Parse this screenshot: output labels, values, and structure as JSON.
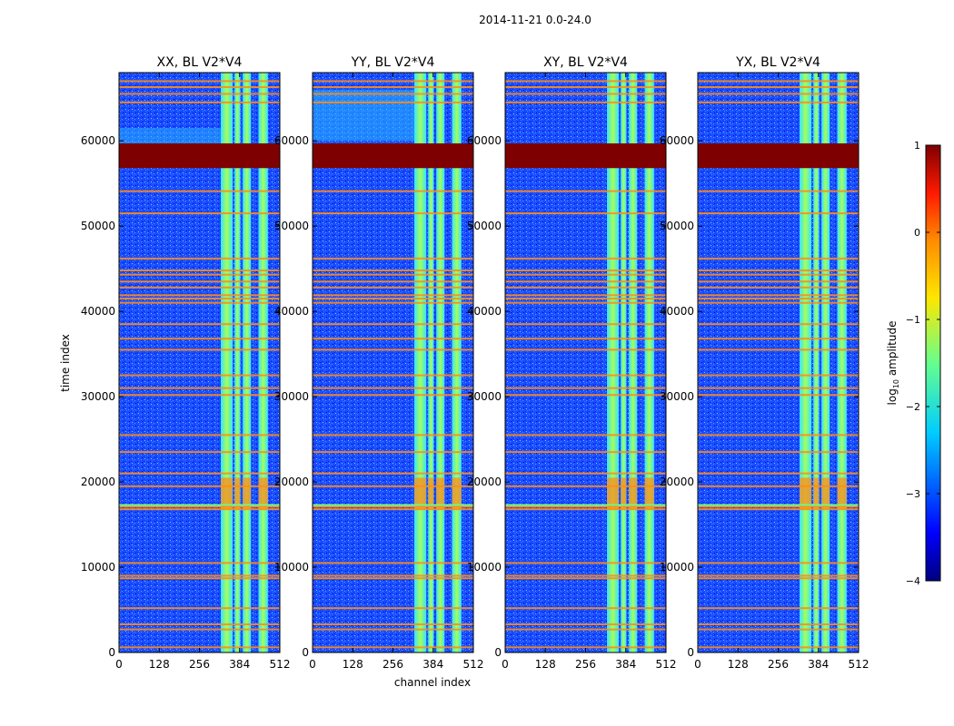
{
  "figure": {
    "suptitle": "2014-11-21 0.0-24.0"
  },
  "colors": {
    "background": "#ffffff",
    "noise_floor": "#1a4cff",
    "rfi_saturated": "#7f0000",
    "rfi_line": "#ff8c1a",
    "band_signal": "#66ff8c",
    "dark_stripe": "#00007f"
  },
  "chart_data": [
    {
      "type": "heatmap",
      "title": "XX, BL V2*V4",
      "xlabel": "",
      "ylabel": "time index",
      "xlim": [
        0,
        512
      ],
      "ylim": [
        0,
        68000
      ],
      "xticks": [
        0,
        128,
        256,
        384,
        512
      ],
      "xtick_labels": [
        "0",
        "128",
        "256",
        "384",
        "512"
      ],
      "yticks": [
        0,
        10000,
        20000,
        30000,
        40000,
        50000,
        60000
      ],
      "ytick_labels": [
        "0",
        "10000",
        "20000",
        "30000",
        "40000",
        "50000",
        "60000"
      ],
      "signal_bands": [
        [
          324,
          362
        ],
        [
          368,
          386
        ],
        [
          394,
          420
        ],
        [
          444,
          474
        ]
      ],
      "saturated_blocks": [
        [
          56800,
          59700
        ]
      ],
      "rfi_lines": [
        600,
        2700,
        3300,
        5200,
        8700,
        9000,
        10500,
        16800,
        17100,
        19500,
        21000,
        23500,
        25500,
        30200,
        31000,
        32500,
        35500,
        36800,
        38500,
        41000,
        41500,
        41900,
        42800,
        43500,
        44300,
        44800,
        46200,
        51500,
        54100,
        64500,
        65500,
        66300,
        67000
      ],
      "strong_region": [
        16800,
        20500
      ],
      "value_range": [
        -4,
        1
      ]
    },
    {
      "type": "heatmap",
      "title": "YY, BL V2*V4",
      "xlabel": "channel index",
      "ylabel": "",
      "xlim": [
        0,
        512
      ],
      "ylim": [
        0,
        68000
      ],
      "xticks": [
        0,
        128,
        256,
        384,
        512
      ],
      "xtick_labels": [
        "0",
        "128",
        "256",
        "384",
        "512"
      ],
      "yticks": [
        0,
        10000,
        20000,
        30000,
        40000,
        50000,
        60000
      ],
      "ytick_labels": [
        "0",
        "10000",
        "20000",
        "30000",
        "40000",
        "50000",
        "60000"
      ],
      "signal_bands": [
        [
          324,
          362
        ],
        [
          368,
          386
        ],
        [
          394,
          420
        ],
        [
          444,
          474
        ]
      ],
      "saturated_blocks": [
        [
          56800,
          59700
        ]
      ],
      "rfi_lines": [
        600,
        2700,
        3300,
        5200,
        8700,
        9000,
        10500,
        16800,
        17100,
        19500,
        21000,
        23500,
        25500,
        30200,
        31000,
        32500,
        35500,
        36800,
        38500,
        41000,
        41500,
        41900,
        42800,
        43500,
        44300,
        44800,
        46200,
        51500,
        54100,
        64500,
        65500,
        66300,
        67000
      ],
      "strong_region": [
        16800,
        20500
      ],
      "value_range": [
        -4,
        1
      ]
    },
    {
      "type": "heatmap",
      "title": "XY, BL V2*V4",
      "xlabel": "",
      "ylabel": "",
      "xlim": [
        0,
        512
      ],
      "ylim": [
        0,
        68000
      ],
      "xticks": [
        0,
        128,
        256,
        384,
        512
      ],
      "xtick_labels": [
        "0",
        "128",
        "256",
        "384",
        "512"
      ],
      "yticks": [
        0,
        10000,
        20000,
        30000,
        40000,
        50000,
        60000
      ],
      "ytick_labels": [
        "0",
        "10000",
        "20000",
        "30000",
        "40000",
        "50000",
        "60000"
      ],
      "signal_bands": [
        [
          324,
          362
        ],
        [
          368,
          386
        ],
        [
          394,
          420
        ],
        [
          444,
          474
        ]
      ],
      "saturated_blocks": [
        [
          56800,
          59700
        ]
      ],
      "rfi_lines": [
        600,
        2700,
        3300,
        5200,
        8700,
        9000,
        10500,
        16800,
        17100,
        19500,
        21000,
        23500,
        25500,
        30200,
        31000,
        32500,
        35500,
        36800,
        38500,
        41000,
        41500,
        41900,
        42800,
        43500,
        44300,
        44800,
        46200,
        51500,
        54100,
        64500,
        65500,
        66300,
        67000
      ],
      "strong_region": [
        16800,
        20500
      ],
      "value_range": [
        -4,
        1
      ]
    },
    {
      "type": "heatmap",
      "title": "YX, BL V2*V4",
      "xlabel": "",
      "ylabel": "",
      "xlim": [
        0,
        512
      ],
      "ylim": [
        0,
        68000
      ],
      "xticks": [
        0,
        128,
        256,
        384,
        512
      ],
      "xtick_labels": [
        "0",
        "128",
        "256",
        "384",
        "512"
      ],
      "yticks": [
        0,
        10000,
        20000,
        30000,
        40000,
        50000,
        60000
      ],
      "ytick_labels": [
        "0",
        "10000",
        "20000",
        "30000",
        "40000",
        "50000",
        "60000"
      ],
      "signal_bands": [
        [
          324,
          362
        ],
        [
          368,
          386
        ],
        [
          394,
          420
        ],
        [
          444,
          474
        ]
      ],
      "saturated_blocks": [
        [
          56800,
          59700
        ]
      ],
      "rfi_lines": [
        600,
        2700,
        3300,
        5200,
        8700,
        9000,
        10500,
        16800,
        17100,
        19500,
        21000,
        23500,
        25500,
        30200,
        31000,
        32500,
        35500,
        36800,
        38500,
        41000,
        41500,
        41900,
        42800,
        43500,
        44300,
        44800,
        46200,
        51500,
        54100,
        64500,
        65500,
        66300,
        67000
      ],
      "strong_region": [
        16800,
        20500
      ],
      "value_range": [
        -4,
        1
      ]
    }
  ],
  "colorbar": {
    "label": "log10 amplitude",
    "label_prefix": "log",
    "label_sub": "10",
    "label_suffix": " amplitude",
    "range": [
      -4,
      1
    ],
    "ticks": [
      1,
      0,
      -1,
      -2,
      -3,
      -4
    ],
    "tick_labels": [
      "1",
      "0",
      "−1",
      "−2",
      "−3",
      "−4"
    ]
  }
}
